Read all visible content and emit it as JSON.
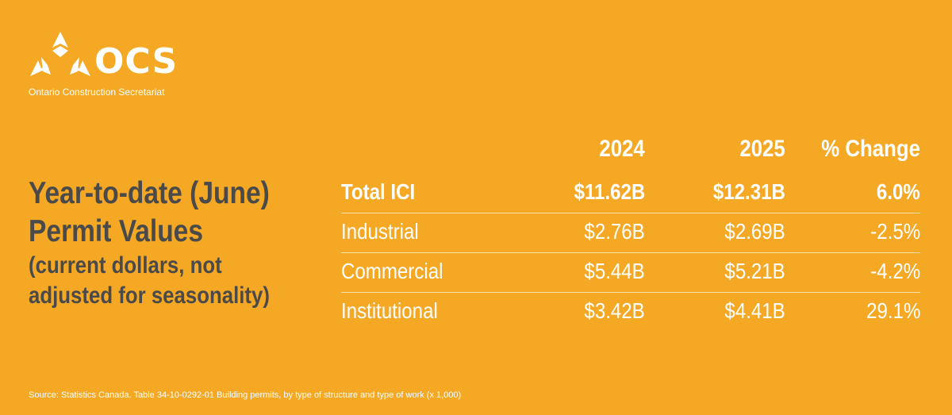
{
  "logo": {
    "wordmark": "OCS",
    "subtitle": "Ontario Construction Secretariat",
    "icon": "ocs-tri-arrow-icon",
    "color": "#FFFFFF"
  },
  "heading": {
    "line1": "Year-to-date (June)",
    "line2": "Permit Values",
    "line3": "(current dollars, not",
    "line4": "adjusted for seasonality)"
  },
  "colors": {
    "background": "#F5A824",
    "heading": "#4A4A4A",
    "text": "#FFFFFF"
  },
  "chart_data": {
    "type": "table",
    "columns": [
      "2024",
      "2025",
      "% Change"
    ],
    "rows": [
      {
        "label": "Total ICI",
        "values": [
          "$11.62B",
          "$12.31B",
          "6.0%"
        ],
        "emphasis": true
      },
      {
        "label": "Industrial",
        "values": [
          "$2.76B",
          "$2.69B",
          "-2.5%"
        ]
      },
      {
        "label": "Commercial",
        "values": [
          "$5.44B",
          "$5.21B",
          "-4.2%"
        ]
      },
      {
        "label": "Institutional",
        "values": [
          "$3.42B",
          "$4.41B",
          "29.1%"
        ]
      }
    ]
  },
  "source": "Source: Statistics Canada. Table 34-10-0292-01  Building permits, by type of structure and type of work (x 1,000)"
}
